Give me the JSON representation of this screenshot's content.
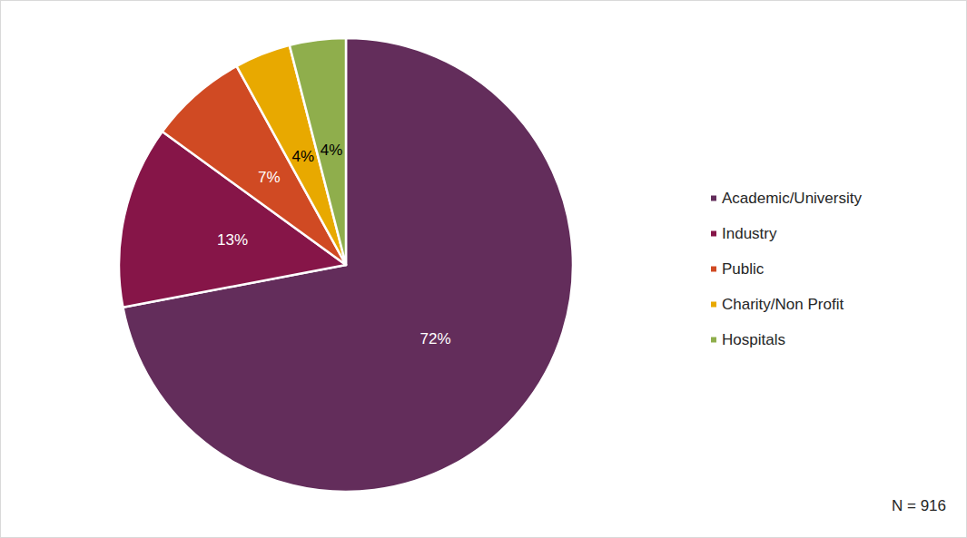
{
  "chart_data": {
    "type": "pie",
    "categories": [
      "Academic/University",
      "Industry",
      "Public",
      "Charity/Non Profit",
      "Hospitals"
    ],
    "values": [
      72,
      13,
      7,
      4,
      4
    ],
    "value_labels": [
      "72%",
      "13%",
      "7%",
      "4%",
      "4%"
    ],
    "colors": [
      "#632d5b",
      "#861548",
      "#d04a23",
      "#e8a900",
      "#8fae4c"
    ],
    "data_labels": true,
    "legend": "right",
    "annotation": "N = 916"
  }
}
